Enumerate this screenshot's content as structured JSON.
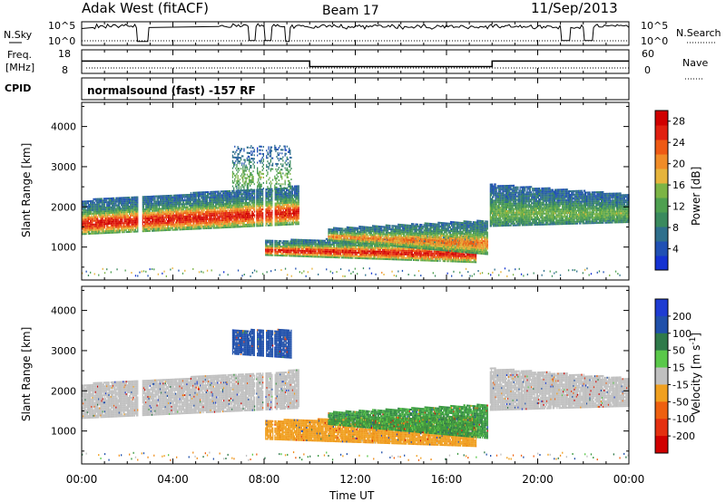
{
  "header": {
    "radar": "Adak West (fitACF)",
    "beam": "Beam 17",
    "date": "11/Sep/2013"
  },
  "strip": {
    "nsky_label": "N.Sky",
    "nsky_ticks": [
      "10^5",
      "10^0"
    ],
    "nsearch_label": "N.Search",
    "nsearch_ticks": [
      "10^5",
      "10^0"
    ],
    "freq_label_1": "Freq.",
    "freq_label_2": "[MHz]",
    "freq_ticks": [
      "18",
      "8"
    ],
    "nave_label": "Nave",
    "nave_ticks": [
      "60",
      "0"
    ],
    "cpid_label": "CPID",
    "cpid_text": "normalsound (fast) -157 RF"
  },
  "colors": {
    "power": [
      "#1432d2",
      "#2050b4",
      "#2e6f8c",
      "#3a8a5e",
      "#4ea050",
      "#7cb445",
      "#e6b43c",
      "#f08c28",
      "#ee5a14",
      "#e02010",
      "#d00000"
    ],
    "velocity_pos": [
      "#1e3cd2",
      "#2050aa",
      "#2f7a4a",
      "#3a9a40",
      "#5ac84a"
    ],
    "velocity_neutral": "#c0c0c0",
    "velocity_neg": [
      "#f0a020",
      "#ee8c18",
      "#ee6010",
      "#e43010",
      "#d00000"
    ]
  },
  "chart_data": [
    {
      "type": "line",
      "name": "n-sky-n-search-panel",
      "ylabel_left": "N.Sky",
      "ylabel_right": "N.Search",
      "yticks": [
        "10^5",
        "10^0"
      ],
      "series": [
        {
          "name": "N.Sky",
          "x_hours": [
            0,
            0.5,
            2.4,
            2.45,
            2.9,
            2.95,
            6,
            7.3,
            7.35,
            7.6,
            7.65,
            8.0,
            8.05,
            8.3,
            8.35,
            8.9,
            8.95,
            9.1,
            9.15,
            17,
            21.0,
            21.05,
            21.4,
            21.45,
            22.0,
            22.05,
            22.4,
            22.45,
            24
          ],
          "level": [
            0.75,
            0.8,
            0.8,
            0.1,
            0.1,
            0.8,
            0.85,
            0.85,
            0.15,
            0.15,
            0.85,
            0.85,
            0.15,
            0.15,
            0.85,
            0.85,
            0.1,
            0.1,
            0.8,
            0.8,
            0.8,
            0.15,
            0.15,
            0.8,
            0.8,
            0.15,
            0.15,
            0.8,
            0.8
          ]
        }
      ]
    },
    {
      "type": "line",
      "name": "frequency-nave-panel",
      "ylabel_left": "Freq. [MHz]",
      "ylabel_right": "Nave",
      "yticks_left": [
        18,
        8
      ],
      "yticks_right": [
        60,
        0
      ],
      "series": [
        {
          "name": "Freq.",
          "x_hours": [
            0,
            10,
            10,
            18,
            18,
            24
          ],
          "mhz": [
            13.9,
            13.9,
            10.5,
            10.5,
            13.9,
            13.9
          ]
        },
        {
          "name": "Nave",
          "x_hours": [
            0,
            24
          ],
          "value": [
            2,
            2
          ]
        }
      ]
    },
    {
      "type": "heatmap",
      "name": "power-panel",
      "ylabel": "Slant Range [km]",
      "yticks": [
        1000,
        2000,
        3000,
        4000
      ],
      "ylim": [
        180,
        4600
      ],
      "colorbar_label": "Power [dB]",
      "colorbar_ticks": [
        4,
        8,
        12,
        16,
        20,
        24,
        28
      ],
      "colorbar_range": [
        0,
        30
      ],
      "scatter_bands": [
        {
          "t0": 0,
          "t1": 9.5,
          "r_bottom_start": 1300,
          "r_bottom_end": 1550,
          "r_top_start": 2150,
          "r_top_end": 2500,
          "peak_db": 28,
          "edge_db": 5
        },
        {
          "t0": 6.6,
          "t1": 9.2,
          "r_bottom_start": 2400,
          "r_bottom_end": 2300,
          "r_top_start": 3500,
          "r_top_end": 3500,
          "peak_db": 14,
          "edge_db": 4,
          "sparse": true
        },
        {
          "t0": 8.0,
          "t1": 17.3,
          "r_bottom_start": 780,
          "r_bottom_end": 600,
          "r_top_start": 1150,
          "r_top_end": 1250,
          "peak_db": 28,
          "edge_db": 6
        },
        {
          "t0": 10.8,
          "t1": 17.8,
          "r_bottom_start": 1150,
          "r_bottom_end": 800,
          "r_top_start": 1450,
          "r_top_end": 1650,
          "peak_db": 22,
          "edge_db": 6
        },
        {
          "t0": 17.9,
          "t1": 24,
          "r_bottom_start": 1500,
          "r_bottom_end": 1600,
          "r_top_start": 2550,
          "r_top_end": 2300,
          "peak_db": 14,
          "edge_db": 5
        }
      ],
      "gaps_hours": [
        2.5,
        2.6,
        7.6,
        8.0,
        8.4
      ]
    },
    {
      "type": "heatmap",
      "name": "velocity-panel",
      "ylabel": "Slant Range [km]",
      "yticks": [
        1000,
        2000,
        3000,
        4000
      ],
      "ylim": [
        180,
        4600
      ],
      "colorbar_label": "Velocity [m s^-1]",
      "colorbar_ticks": [
        200,
        100,
        50,
        15,
        -15,
        -50,
        -100,
        -200
      ],
      "scatter_bands": [
        {
          "t0": 0,
          "t1": 9.5,
          "r_bottom_start": 1300,
          "r_bottom_end": 1550,
          "r_top_start": 2150,
          "r_top_end": 2500,
          "velocity": 0
        },
        {
          "t0": 6.6,
          "t1": 9.2,
          "r_bottom_start": 2900,
          "r_bottom_end": 2800,
          "r_top_start": 3500,
          "r_top_end": 3500,
          "velocity": 120
        },
        {
          "t0": 8.0,
          "t1": 17.3,
          "r_bottom_start": 780,
          "r_bottom_end": 600,
          "r_top_start": 1250,
          "r_top_end": 1350,
          "velocity": -40
        },
        {
          "t0": 10.8,
          "t1": 17.8,
          "r_bottom_start": 1150,
          "r_bottom_end": 800,
          "r_top_start": 1450,
          "r_top_end": 1650,
          "velocity": 40
        },
        {
          "t0": 17.9,
          "t1": 24,
          "r_bottom_start": 1500,
          "r_bottom_end": 1600,
          "r_top_start": 2550,
          "r_top_end": 2300,
          "velocity": 0
        }
      ]
    }
  ],
  "xaxis": {
    "label": "Time UT",
    "range_hours": [
      0,
      24
    ],
    "tick_labels": [
      "00:00",
      "04:00",
      "08:00",
      "12:00",
      "16:00",
      "20:00",
      "00:00"
    ]
  }
}
